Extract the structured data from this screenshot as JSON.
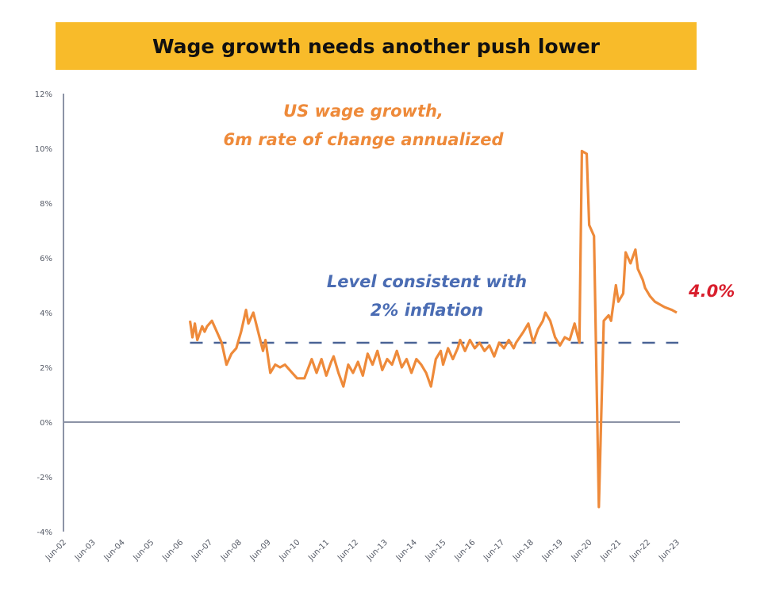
{
  "colors": {
    "banner": "#F8BB2A",
    "series": "#EE8A3A",
    "reference": "#4A6396",
    "axis": "#8C93A6",
    "last_value": "#D81E2C",
    "annotation_blue": "#4A6CB3"
  },
  "chart_data": {
    "type": "line",
    "title": "Wage growth needs another push lower",
    "xlabel": "",
    "ylabel": "",
    "xlim": [
      "2002-06",
      "2023-06"
    ],
    "ylim": [
      -4,
      12
    ],
    "y_ticks": [
      "12%",
      "10%",
      "8%",
      "6%",
      "4%",
      "2%",
      "0%",
      "-2%",
      "-4%"
    ],
    "y_tick_values": [
      12,
      10,
      8,
      6,
      4,
      2,
      0,
      -2,
      -4
    ],
    "x_ticks": [
      "Jun-02",
      "Jun-03",
      "Jun-04",
      "Jun-05",
      "Jun-06",
      "Jun-07",
      "Jun-08",
      "Jun-09",
      "Jun-10",
      "Jun-11",
      "Jun-12",
      "Jun-13",
      "Jun-14",
      "Jun-15",
      "Jun-16",
      "Jun-17",
      "Jun-18",
      "Jun-19",
      "Jun-20",
      "Jun-21",
      "Jun-22",
      "Jun-23"
    ],
    "grid": false,
    "annotations": {
      "series_label_line1": "US wage growth,",
      "series_label_line2": "6m rate of change annualized",
      "reference_label_line1": "Level consistent with",
      "reference_label_line2": "2% inflation",
      "last_value": "4.0%"
    },
    "reference_line": {
      "value": 2.9,
      "style": "dashed",
      "start": "2006-10",
      "end": "2023-06"
    },
    "series": [
      {
        "x": [
          "2006-10",
          "2006-11",
          "2006-12",
          "2007-01",
          "2007-03",
          "2007-04",
          "2007-05",
          "2007-07",
          "2007-09",
          "2007-11",
          "2008-01",
          "2008-03",
          "2008-05",
          "2008-07",
          "2008-09",
          "2008-10",
          "2008-12",
          "2009-02",
          "2009-04",
          "2009-05",
          "2009-07",
          "2009-09",
          "2009-11",
          "2010-01",
          "2010-04",
          "2010-06",
          "2010-09",
          "2010-12",
          "2011-02",
          "2011-04",
          "2011-06",
          "2011-08",
          "2011-09",
          "2011-11",
          "2012-01",
          "2012-03",
          "2012-05",
          "2012-07",
          "2012-09",
          "2012-11",
          "2013-01",
          "2013-03",
          "2013-05",
          "2013-07",
          "2013-09",
          "2013-11",
          "2014-01",
          "2014-03",
          "2014-05",
          "2014-07",
          "2014-09",
          "2014-11",
          "2015-01",
          "2015-03",
          "2015-05",
          "2015-06",
          "2015-08",
          "2015-10",
          "2015-12",
          "2016-01",
          "2016-03",
          "2016-05",
          "2016-07",
          "2016-09",
          "2016-11",
          "2017-01",
          "2017-03",
          "2017-05",
          "2017-07",
          "2017-09",
          "2017-11",
          "2017-12",
          "2018-03",
          "2018-05",
          "2018-07",
          "2018-09",
          "2018-11",
          "2018-12",
          "2019-02",
          "2019-04",
          "2019-06",
          "2019-08",
          "2019-10",
          "2019-12",
          "2020-02",
          "2020-03",
          "2020-05",
          "2020-06",
          "2020-08",
          "2020-10",
          "2020-12",
          "2021-02",
          "2021-03",
          "2021-05",
          "2021-06",
          "2021-08",
          "2021-09",
          "2021-11",
          "2022-01",
          "2022-02",
          "2022-04",
          "2022-05",
          "2022-07",
          "2022-09",
          "2022-11",
          "2023-01",
          "2023-04",
          "2023-06"
        ],
        "y": [
          3.7,
          3.1,
          3.6,
          3.0,
          3.5,
          3.3,
          3.5,
          3.7,
          3.3,
          2.9,
          2.1,
          2.5,
          2.7,
          3.3,
          4.1,
          3.6,
          4.0,
          3.3,
          2.6,
          3.0,
          1.8,
          2.1,
          2.0,
          2.1,
          1.8,
          1.6,
          1.6,
          2.3,
          1.8,
          2.3,
          1.7,
          2.2,
          2.4,
          1.8,
          1.3,
          2.1,
          1.8,
          2.2,
          1.7,
          2.5,
          2.1,
          2.6,
          1.9,
          2.3,
          2.1,
          2.6,
          2.0,
          2.3,
          1.8,
          2.3,
          2.1,
          1.8,
          1.3,
          2.3,
          2.6,
          2.1,
          2.7,
          2.3,
          2.7,
          3.0,
          2.6,
          3.0,
          2.7,
          2.9,
          2.6,
          2.8,
          2.4,
          2.9,
          2.7,
          3.0,
          2.7,
          2.9,
          3.3,
          3.6,
          2.9,
          3.4,
          3.7,
          4.0,
          3.7,
          3.1,
          2.8,
          3.1,
          3.0,
          3.6,
          2.9,
          9.9,
          9.8,
          7.2,
          6.8,
          -3.1,
          3.7,
          3.9,
          3.7,
          5.0,
          4.4,
          4.7,
          6.2,
          5.8,
          6.3,
          5.6,
          5.2,
          4.9,
          4.6,
          4.4,
          4.3,
          4.2,
          4.1,
          4.0
        ]
      }
    ]
  }
}
